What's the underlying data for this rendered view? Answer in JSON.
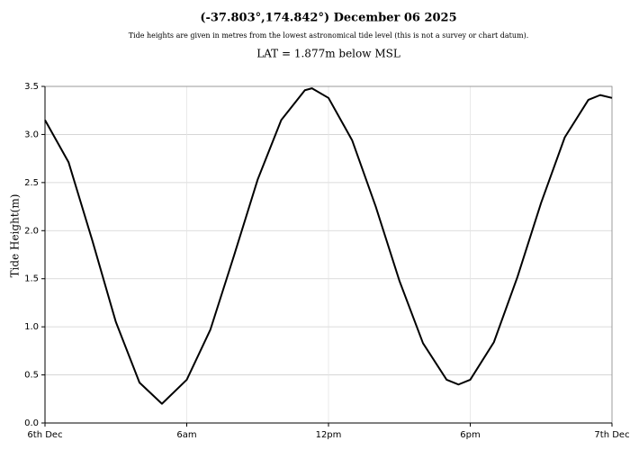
{
  "chart_data": {
    "type": "line",
    "title": "(-37.803°,174.842°) December 06 2025",
    "subtitle": "Tide heights are given in metres from the lowest astronomical tide level (this is not a survey or chart datum).",
    "annotation": "LAT = 1.877m below MSL",
    "y_label": "Tide Height(m)",
    "x": [
      0,
      1,
      2,
      3,
      4,
      4.95,
      6,
      7,
      8,
      9,
      10,
      11,
      11.3,
      12,
      13,
      14,
      15,
      16,
      17,
      17.5,
      18,
      19,
      20,
      21,
      22,
      23,
      23.5,
      24
    ],
    "values": [
      3.15,
      2.71,
      1.9,
      1.05,
      0.42,
      0.2,
      0.45,
      0.97,
      1.74,
      2.53,
      3.15,
      3.46,
      3.48,
      3.38,
      2.94,
      2.25,
      1.48,
      0.83,
      0.45,
      0.4,
      0.45,
      0.84,
      1.52,
      2.29,
      2.97,
      3.36,
      3.41,
      3.38
    ],
    "color": "#000000",
    "xlim": [
      0,
      24
    ],
    "xticks": [
      {
        "value": 0,
        "label": "6th Dec"
      },
      {
        "value": 6,
        "label": "6am"
      },
      {
        "value": 12,
        "label": "12pm"
      },
      {
        "value": 18,
        "label": "6pm"
      },
      {
        "value": 24,
        "label": "7th Dec"
      }
    ],
    "ylim": [
      0,
      3.5
    ],
    "yticks": [
      {
        "value": 0,
        "label": "0.0"
      },
      0.5,
      {
        "value": 1,
        "label": "1.0"
      },
      1.5,
      {
        "value": 2,
        "label": "2.0"
      },
      2.5,
      {
        "value": 3,
        "label": "3.0"
      },
      3.5
    ],
    "grid": true
  }
}
